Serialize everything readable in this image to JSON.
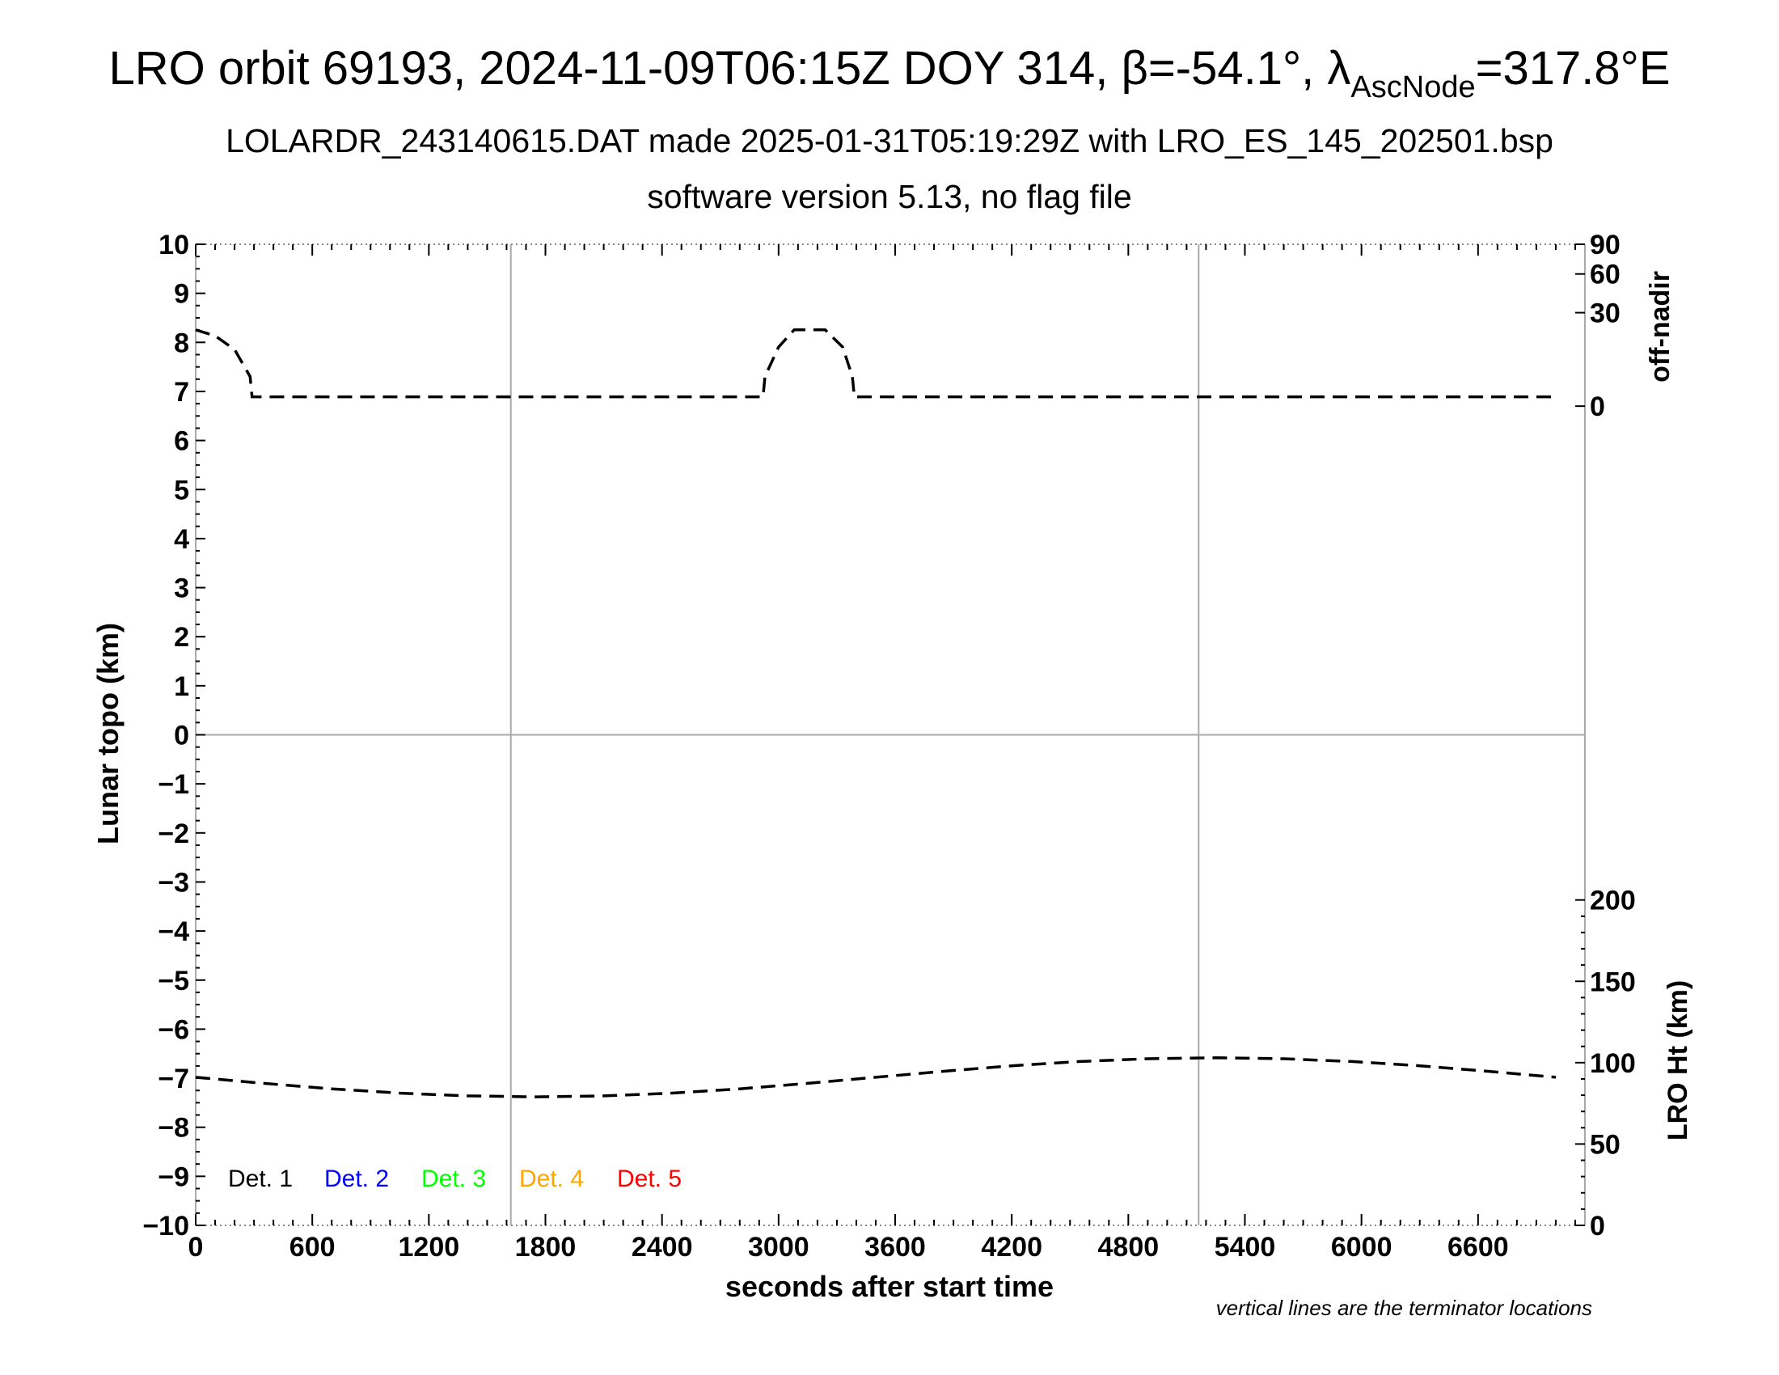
{
  "chart_data": {
    "type": "line",
    "title_main": "LRO orbit 69193, 2024-11-09T06:15Z DOY 314, β=-54.1°, λ",
    "title_sub": "AscNode",
    "title_end": "=317.8°E",
    "subtitle1": "LOLARDR_243140615.DAT made 2025-01-31T05:19:29Z with LRO_ES_145_202501.bsp",
    "subtitle2": "software version 5.13, no flag file",
    "xlabel": "seconds after start time",
    "ylabel": "Lunar topo (km)",
    "y2label_top": "off-nadir",
    "y2label_bottom": "LRO Ht (km)",
    "note": "vertical lines are the terminator locations",
    "xlim": [
      0,
      7150
    ],
    "xticks": [
      0,
      600,
      1200,
      1800,
      2400,
      3000,
      3600,
      4200,
      4800,
      5400,
      6000,
      6600
    ],
    "ylim": [
      -10,
      10
    ],
    "yticks": [
      -10,
      -9,
      -8,
      -7,
      -6,
      -5,
      -4,
      -3,
      -2,
      -1,
      0,
      1,
      2,
      3,
      4,
      5,
      6,
      7,
      8,
      9,
      10
    ],
    "offnadir_axis": {
      "scale": "sqrt",
      "range": [
        0,
        90
      ],
      "ticks": [
        0,
        30,
        60,
        90
      ]
    },
    "height_axis": {
      "range": [
        0,
        603
      ],
      "ticks": [
        0,
        50,
        100,
        150,
        200
      ]
    },
    "terminators": [
      1622,
      5162
    ],
    "grid_zero_line": true,
    "legend": [
      {
        "label": "Det. 1",
        "color": "#000000"
      },
      {
        "label": "Det. 2",
        "color": "#0000ff"
      },
      {
        "label": "Det. 3",
        "color": "#00ff00"
      },
      {
        "label": "Det. 4",
        "color": "#ffa500"
      },
      {
        "label": "Det. 5",
        "color": "#ff0000"
      }
    ],
    "legend_placement": "bottom-left",
    "series": [
      {
        "axis": "off-nadir (deg)",
        "style": "dashed",
        "color": "#000000",
        "points": [
          [
            0,
            20
          ],
          [
            100,
            17
          ],
          [
            200,
            11
          ],
          [
            280,
            3
          ],
          [
            290,
            0.3
          ],
          [
            2920,
            0.3
          ],
          [
            2930,
            3
          ],
          [
            3000,
            12
          ],
          [
            3080,
            20
          ],
          [
            3240,
            20
          ],
          [
            3330,
            12
          ],
          [
            3380,
            3
          ],
          [
            3390,
            0.3
          ],
          [
            6990,
            0.3
          ]
        ]
      },
      {
        "axis": "LRO Ht (km)",
        "style": "dashed",
        "color": "#000000",
        "points": [
          [
            0,
            91
          ],
          [
            350,
            87.3
          ],
          [
            700,
            83.9
          ],
          [
            1050,
            81.3
          ],
          [
            1400,
            79.6
          ],
          [
            1750,
            79
          ],
          [
            2100,
            79.6
          ],
          [
            2450,
            81.3
          ],
          [
            2800,
            83.9
          ],
          [
            3150,
            87.3
          ],
          [
            3500,
            91
          ],
          [
            3850,
            94.7
          ],
          [
            4200,
            98.1
          ],
          [
            4550,
            100.7
          ],
          [
            4900,
            102.4
          ],
          [
            5250,
            103
          ],
          [
            5600,
            102.4
          ],
          [
            5950,
            100.7
          ],
          [
            6300,
            98.1
          ],
          [
            6650,
            94.7
          ],
          [
            7000,
            91
          ]
        ]
      }
    ]
  }
}
